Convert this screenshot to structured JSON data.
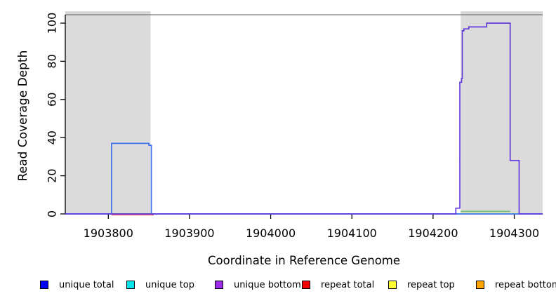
{
  "chart_data": {
    "type": "line",
    "title": "",
    "xlabel": "Coordinate in Reference Genome",
    "ylabel": "Read Coverage Depth",
    "xlim": [
      1903747,
      1904335
    ],
    "ylim": [
      0,
      104
    ],
    "x_ticks": [
      "1903800",
      "1903900",
      "1904000",
      "1904100",
      "1904200",
      "1904300"
    ],
    "x_tick_values": [
      1903800,
      1903900,
      1904000,
      1904100,
      1904200,
      1904300
    ],
    "y_ticks": [
      "0",
      "20",
      "40",
      "60",
      "80",
      "100"
    ],
    "y_tick_values": [
      0,
      20,
      40,
      60,
      80,
      100
    ],
    "grid": false,
    "legend_position": "bottom",
    "shaded_regions": [
      {
        "name": "masked-region-left",
        "x0": 1903747,
        "x1": 1903852,
        "color": "#DBDBDB"
      },
      {
        "name": "masked-region-right",
        "x0": 1904234,
        "x1": 1904335,
        "color": "#DBDBDB"
      }
    ],
    "series": [
      {
        "name": "unique total",
        "color": "#3D73EE",
        "points": [
          [
            1903747,
            0
          ],
          [
            1903804,
            0
          ],
          [
            1903804,
            37
          ],
          [
            1903850,
            37
          ],
          [
            1903850,
            36
          ],
          [
            1903853,
            36
          ],
          [
            1903853,
            0
          ],
          [
            1904335,
            0
          ]
        ]
      },
      {
        "name": "unique bottom",
        "color": "#613BDB",
        "points": [
          [
            1903747,
            0
          ],
          [
            1904228,
            0
          ],
          [
            1904228,
            3
          ],
          [
            1904233,
            3
          ],
          [
            1904233,
            69
          ],
          [
            1904235,
            69
          ],
          [
            1904235,
            71
          ],
          [
            1904236,
            71
          ],
          [
            1904236,
            96
          ],
          [
            1904238,
            96
          ],
          [
            1904238,
            97
          ],
          [
            1904244,
            97
          ],
          [
            1904244,
            98
          ],
          [
            1904266,
            98
          ],
          [
            1904266,
            100
          ],
          [
            1904295,
            100
          ],
          [
            1904295,
            28
          ],
          [
            1904306,
            28
          ],
          [
            1904306,
            0
          ],
          [
            1904335,
            0
          ]
        ]
      }
    ],
    "baseline_segments": [
      {
        "name": "repeat-total-segment",
        "color": "#E8525E",
        "y": -0.5,
        "x0": 1903804,
        "x1": 1903856
      },
      {
        "name": "pale-yellow-segment",
        "color": "#EDEDAE",
        "y": 0.4,
        "x0": 1904234,
        "x1": 1904306
      },
      {
        "name": "green-segment",
        "color": "#69BD69",
        "y": 1.3,
        "x0": 1904234,
        "x1": 1904295
      }
    ],
    "top_border_color": "#777777",
    "axis_color": "#000000"
  },
  "legend": {
    "items": [
      {
        "label": "unique total",
        "color": "#0000F5"
      },
      {
        "label": "unique top",
        "color": "#00E5EE"
      },
      {
        "label": "unique bottom",
        "color": "#9D2BEB"
      },
      {
        "label": "repeat total",
        "color": "#F00000"
      },
      {
        "label": "repeat top",
        "color": "#FFFF33"
      },
      {
        "label": "repeat bottom",
        "color": "#FFA500"
      }
    ]
  }
}
